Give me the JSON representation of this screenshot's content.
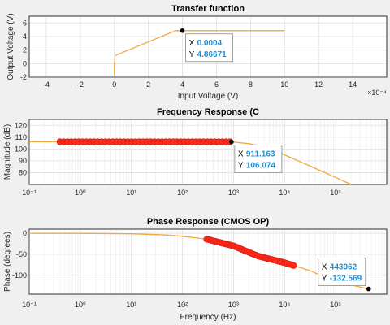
{
  "chart_data": [
    {
      "type": "line",
      "title": "Transfer function",
      "xlabel": "Input Voltage (V)",
      "ylabel": "Output Voltage (V)",
      "x_exponent": "×10⁻⁴",
      "xlim": [
        -5,
        16
      ],
      "ylim": [
        -2,
        7
      ],
      "xticks": [
        "-4",
        "-2",
        "0",
        "2",
        "4",
        "6",
        "8",
        "10",
        "12",
        "14"
      ],
      "yticks": [
        "-2",
        "0",
        "2",
        "4",
        "6"
      ],
      "grid": true,
      "series": [
        {
          "x": [
            0,
            0,
            0.05,
            3.6,
            10
          ],
          "y": [
            -1.7,
            0,
            1.2,
            4.87,
            4.87
          ]
        }
      ],
      "datatip": {
        "x_label": "X",
        "y_label": "Y",
        "x_value": "0.0004",
        "y_value": "4.86671",
        "point": [
          4,
          4.87
        ]
      }
    },
    {
      "type": "line",
      "title": "Frequency Response (C",
      "xlabel": "",
      "ylabel": "Magnitude (dB)",
      "xscale": "log",
      "xlim": [
        0.1,
        1000000
      ],
      "ylim": [
        70,
        125
      ],
      "xticks": [
        "10⁻¹",
        "10⁰",
        "10¹",
        "10²",
        "10³",
        "10⁴",
        "10⁵"
      ],
      "yticks": [
        "80",
        "90",
        "100",
        "110",
        "120"
      ],
      "grid": true,
      "series": [
        {
          "x": [
            0.1,
            1,
            10,
            100,
            911,
            2000,
            5000,
            10000,
            30000,
            100000,
            200000
          ],
          "y": [
            106.07,
            106.07,
            106.07,
            106.07,
            106.07,
            104.5,
            101.5,
            95,
            86,
            76,
            70
          ]
        }
      ],
      "markers": {
        "x_start": 0.4,
        "x_end": 850,
        "y": 106.07,
        "count": 46
      },
      "datatip": {
        "x_label": "X",
        "y_label": "Y",
        "x_value": "911.163",
        "y_value": "106.074",
        "point": [
          911,
          106.07
        ]
      }
    },
    {
      "type": "line",
      "title": "Phase Response (CMOS OP)",
      "xlabel": "Frequency (Hz)",
      "ylabel": "Phase (degrees)",
      "xscale": "log",
      "xlim": [
        0.1,
        1000000
      ],
      "ylim": [
        -145,
        10
      ],
      "xticks": [
        "10⁻¹",
        "10⁰",
        "10¹",
        "10²",
        "10³",
        "10⁴",
        "10⁵"
      ],
      "yticks": [
        "0",
        "-50",
        "-100"
      ],
      "grid": true,
      "series": [
        {
          "x": [
            0.1,
            1,
            10,
            50,
            100,
            300,
            1000,
            3000,
            10000,
            30000,
            100000,
            443062
          ],
          "y": [
            0,
            0,
            -1,
            -4,
            -7,
            -14,
            -30,
            -54,
            -70,
            -88,
            -115,
            -132.57
          ]
        }
      ],
      "markers": {
        "x_start": 300,
        "x_end": 15000,
        "count": 40
      },
      "datatip": {
        "x_label": "X",
        "y_label": "Y",
        "x_value": "443062",
        "y_value": "-132.569",
        "point": [
          443062,
          -132.57
        ]
      }
    }
  ]
}
